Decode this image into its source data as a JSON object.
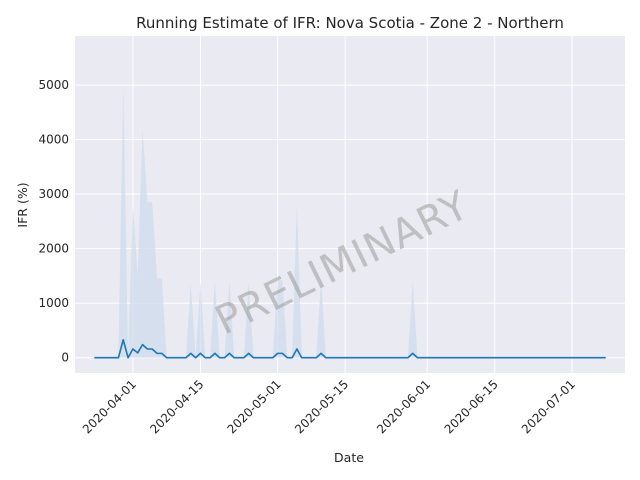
{
  "chart_data": {
    "type": "line",
    "title": "Running Estimate of IFR: Nova Scotia - Zone 2 - Northern",
    "xlabel": "Date",
    "ylabel": "IFR (%)",
    "watermark": "PRELIMINARY",
    "x_start": "2020-03-24",
    "x_end": "2020-07-08",
    "xlim": [
      "2020-03-20",
      "2020-07-12"
    ],
    "ylim": [
      -280,
      5900
    ],
    "grid": true,
    "x_ticks": [
      "2020-04-01",
      "2020-04-15",
      "2020-05-01",
      "2020-05-15",
      "2020-06-01",
      "2020-06-15",
      "2020-07-01"
    ],
    "y_ticks": [
      0,
      1000,
      2000,
      3000,
      4000,
      5000
    ],
    "colors": {
      "line": "#1f77b4",
      "band": "#c9d9ea",
      "background": "#eaeaf2",
      "grid": "#ffffff"
    },
    "series": [
      {
        "values": [
          0,
          0,
          0,
          0,
          0,
          0,
          330,
          0,
          160,
          90,
          240,
          160,
          160,
          80,
          80,
          0,
          0,
          0,
          0,
          0,
          80,
          0,
          80,
          0,
          0,
          80,
          0,
          0,
          80,
          0,
          0,
          0,
          80,
          0,
          0,
          0,
          0,
          0,
          80,
          80,
          0,
          0,
          160,
          0,
          0,
          0,
          0,
          80,
          0,
          0,
          0,
          0,
          0,
          0,
          0,
          0,
          0,
          0,
          0,
          0,
          0,
          0,
          0,
          0,
          0,
          0,
          80,
          0,
          0,
          0,
          0,
          0,
          0,
          0,
          0,
          0,
          0,
          0,
          0,
          0,
          0,
          0,
          0,
          0,
          0,
          0,
          0,
          0,
          0,
          0,
          0,
          0,
          0,
          0,
          0,
          0,
          0,
          0,
          0,
          0,
          0,
          0,
          0,
          0,
          0,
          0,
          0
        ],
        "band_upper": [
          0,
          0,
          0,
          0,
          0,
          0,
          5000,
          0,
          2800,
          1500,
          4200,
          2850,
          2850,
          1450,
          1450,
          0,
          0,
          0,
          0,
          0,
          1350,
          0,
          1380,
          0,
          0,
          1400,
          0,
          0,
          1420,
          0,
          0,
          0,
          1380,
          0,
          0,
          0,
          0,
          0,
          1420,
          1420,
          0,
          0,
          2800,
          0,
          0,
          0,
          0,
          1420,
          0,
          0,
          0,
          0,
          0,
          0,
          0,
          0,
          0,
          0,
          0,
          0,
          0,
          0,
          0,
          0,
          0,
          0,
          1400,
          0,
          0,
          0,
          0,
          0,
          0,
          0,
          0,
          0,
          0,
          0,
          0,
          0,
          0,
          0,
          0,
          0,
          0,
          0,
          0,
          0,
          0,
          0,
          0,
          0,
          0,
          0,
          0,
          0,
          0,
          0,
          0,
          0,
          0,
          0,
          0,
          0,
          0,
          0,
          0
        ]
      }
    ]
  }
}
